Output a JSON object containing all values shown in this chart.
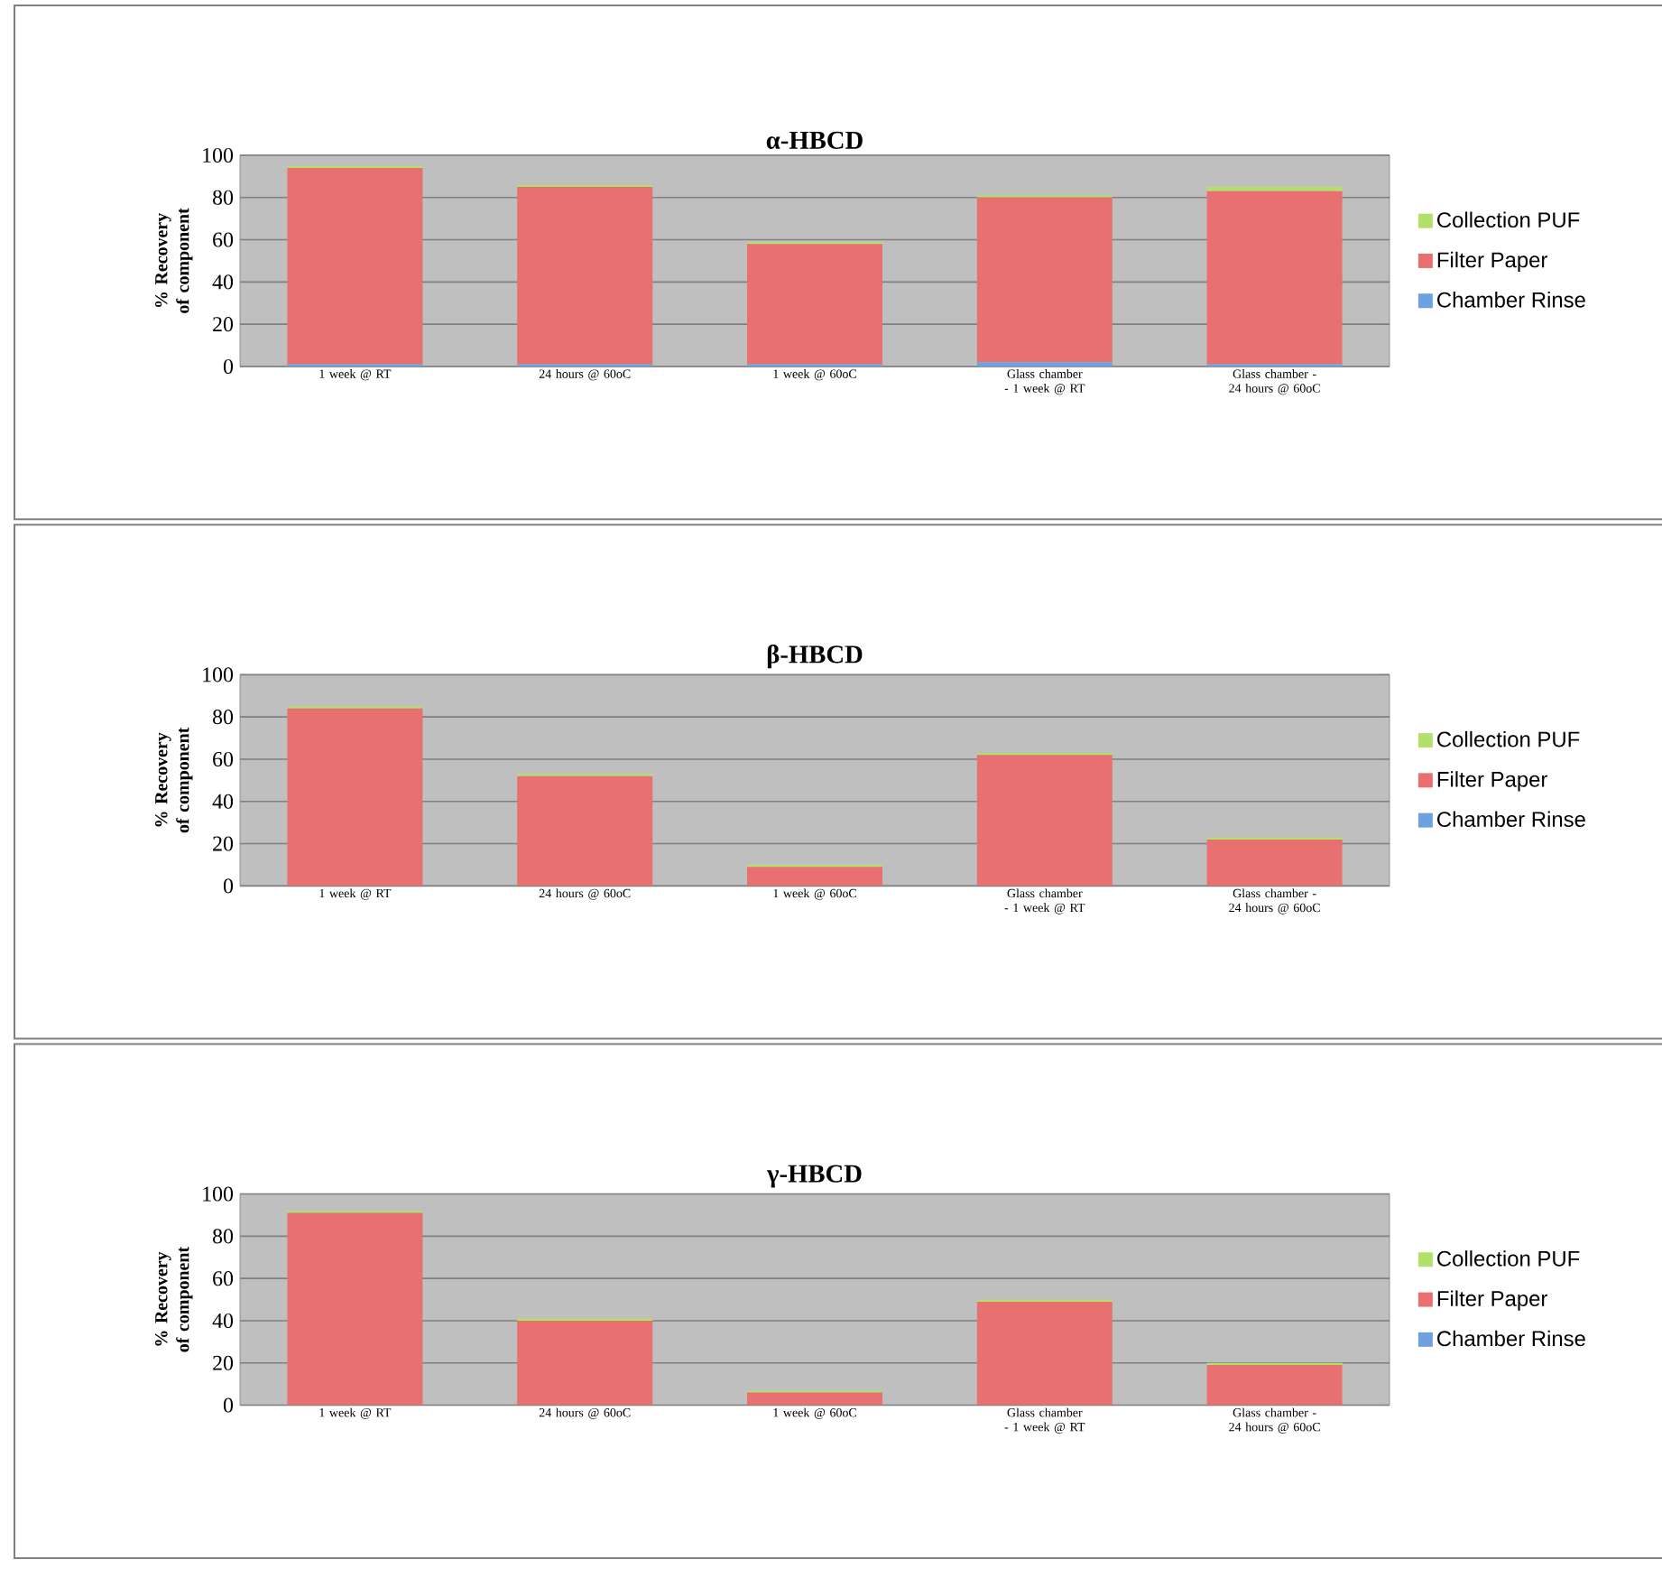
{
  "chart_data": [
    {
      "type": "bar",
      "title": "α-HBCD",
      "ylabel": "% Recovery of component",
      "categories": [
        "1 week @ RT",
        "24 hours @ 60oC",
        "1 week @ 60oC",
        "Glass chamber - 1 week @ RT",
        "Glass chamber - 24 hours @ 60oC"
      ],
      "stacked": true,
      "ylim": [
        0,
        100
      ],
      "yticks": [
        0,
        20,
        40,
        60,
        80,
        100
      ],
      "grid": "y",
      "legend": "right",
      "series": [
        {
          "name": "Chamber Rinse",
          "color": "#6fa0e0",
          "values": [
            1,
            1,
            1,
            2,
            1
          ]
        },
        {
          "name": "Filter Paper",
          "color": "#e87070",
          "values": [
            93,
            84,
            57,
            78,
            82
          ]
        },
        {
          "name": "Collection PUF",
          "color": "#b3e06a",
          "values": [
            1,
            1,
            1,
            1,
            2
          ]
        }
      ]
    },
    {
      "type": "bar",
      "title": "β-HBCD",
      "ylabel": "% Recovery of component",
      "categories": [
        "1 week @ RT",
        "24 hours @ 60oC",
        "1 week @ 60oC",
        "Glass chamber - 1 week @ RT",
        "Glass chamber - 24 hours @ 60oC"
      ],
      "stacked": true,
      "ylim": [
        0,
        100
      ],
      "yticks": [
        0,
        20,
        40,
        60,
        80,
        100
      ],
      "grid": "y",
      "legend": "right",
      "series": [
        {
          "name": "Chamber Rinse",
          "color": "#6fa0e0",
          "values": [
            null,
            null,
            null,
            null,
            null
          ]
        },
        {
          "name": "Filter Paper",
          "color": "#e87070",
          "values": [
            84,
            52,
            9,
            62,
            22
          ]
        },
        {
          "name": "Collection PUF",
          "color": "#b3e06a",
          "values": [
            1,
            1,
            1,
            1,
            1
          ]
        }
      ]
    },
    {
      "type": "bar",
      "title": "γ-HBCD",
      "ylabel": "% Recovery of component",
      "categories": [
        "1 week @ RT",
        "24 hours @ 60oC",
        "1 week @ 60oC",
        "Glass chamber - 1 week @ RT",
        "Glass chamber - 24 hours @ 60oC"
      ],
      "stacked": true,
      "ylim": [
        0,
        100
      ],
      "yticks": [
        0,
        20,
        40,
        60,
        80,
        100
      ],
      "grid": "y",
      "legend": "right",
      "series": [
        {
          "name": "Chamber Rinse",
          "color": "#6fa0e0",
          "values": [
            null,
            null,
            null,
            null,
            null
          ]
        },
        {
          "name": "Filter Paper",
          "color": "#e87070",
          "values": [
            91,
            40,
            6,
            49,
            19
          ]
        },
        {
          "name": "Collection PUF",
          "color": "#b3e06a",
          "values": [
            1,
            1,
            1,
            1,
            1
          ]
        }
      ]
    }
  ]
}
